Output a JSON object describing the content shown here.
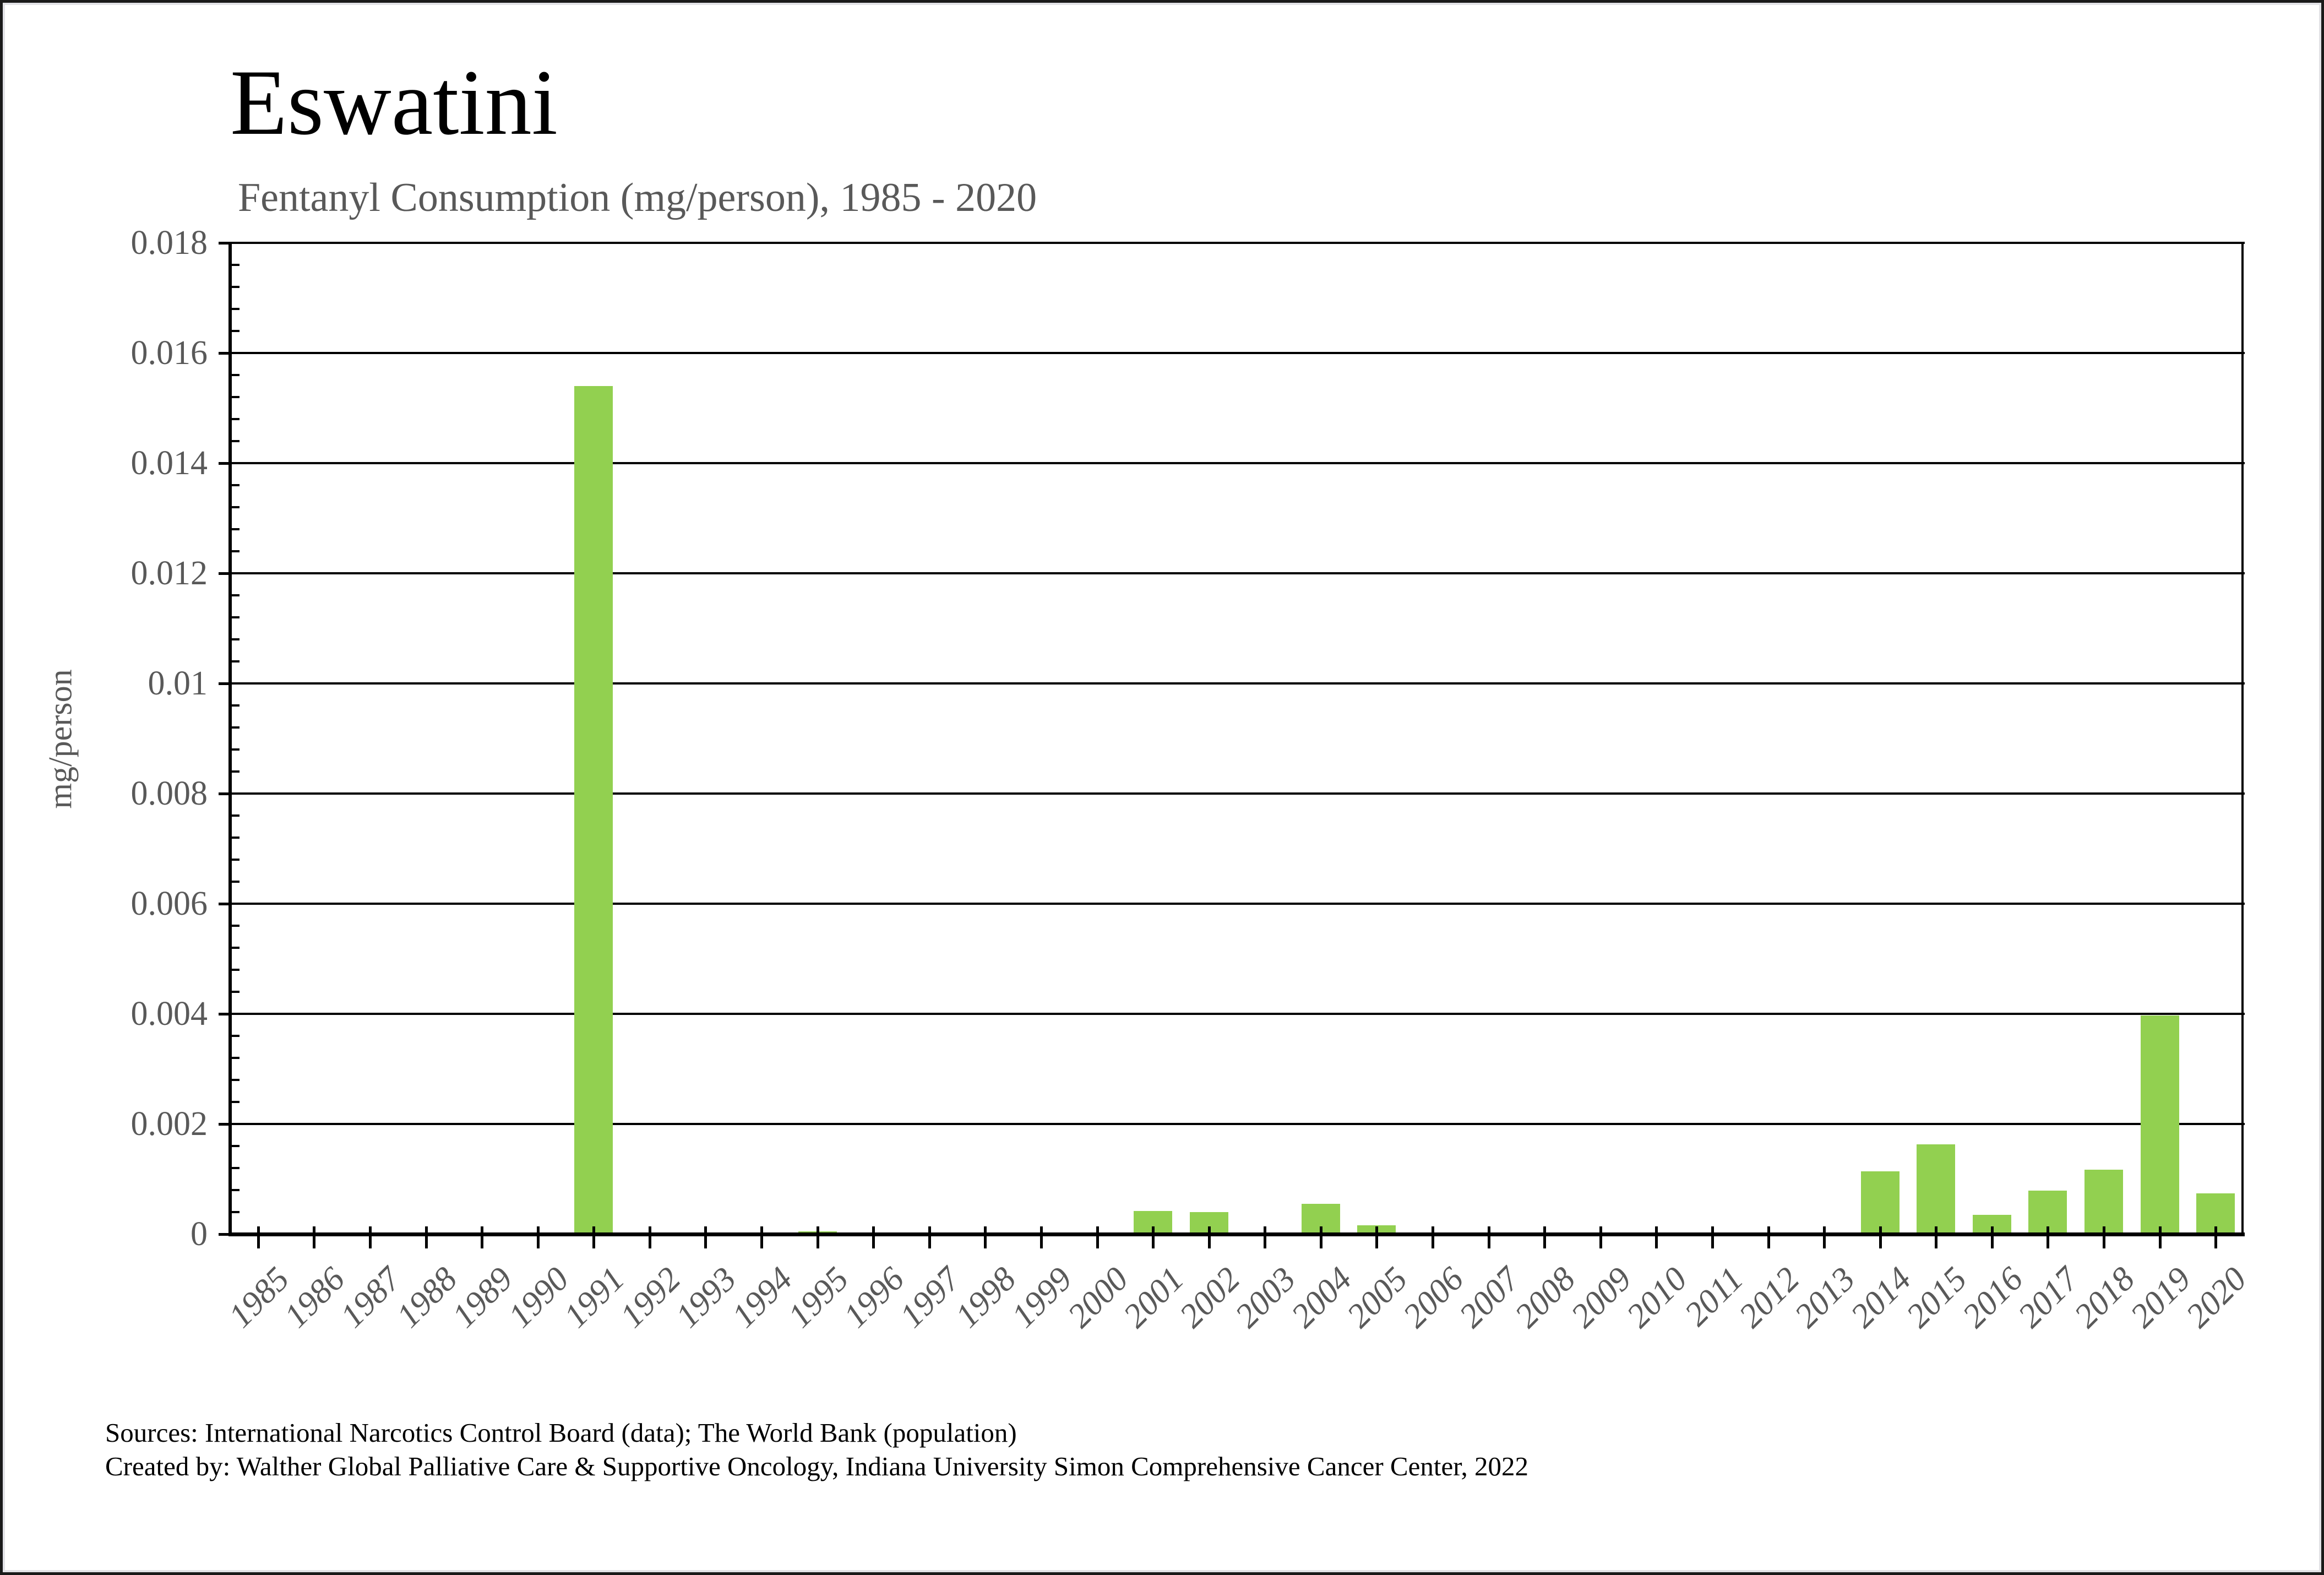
{
  "figure": {
    "title": "Eswatini",
    "subtitle": "Fentanyl Consumption (mg/person), 1985 - 2020",
    "y_axis_title": "mg/person",
    "footer": {
      "sources_line": "Sources: International Narcotics Control Board (data); The World Bank (population)",
      "credit_line": "Created by: Walther Global Palliative Care & Supportive Oncology, Indiana University Simon Comprehensive Cancer Center, 2022"
    }
  },
  "colors": {
    "bar": "#92D050",
    "grid": "#000000",
    "text_gray": "#595959",
    "title_black": "#000000",
    "background": "#ffffff"
  },
  "chart_data": {
    "type": "bar",
    "title": "Eswatini",
    "subtitle": "Fentanyl Consumption (mg/person), 1985 - 2020",
    "xlabel": "",
    "ylabel": "mg/person",
    "ylim": [
      0,
      0.018
    ],
    "ytick_step": 0.002,
    "ytick_labels": [
      "0.018",
      "0.016",
      "0.014",
      "0.012",
      "0.01",
      "0.008",
      "0.006",
      "0.004",
      "0.002",
      "0"
    ],
    "y_minor_ticks_per_major": 5,
    "grid": "horizontal-major-on",
    "legend_position": "none",
    "bar_color": "#92D050",
    "categories": [
      1985,
      1986,
      1987,
      1988,
      1989,
      1990,
      1991,
      1992,
      1993,
      1994,
      1995,
      1996,
      1997,
      1998,
      1999,
      2000,
      2001,
      2002,
      2003,
      2004,
      2005,
      2006,
      2007,
      2008,
      2009,
      2010,
      2011,
      2012,
      2013,
      2014,
      2015,
      2016,
      2017,
      2018,
      2019,
      2020
    ],
    "values": [
      0,
      0,
      0,
      0,
      0,
      0,
      0.0154,
      0,
      0,
      0,
      5e-05,
      0,
      0,
      0,
      0,
      0,
      0.00042,
      0.0004,
      0,
      0.00055,
      0.00016,
      0,
      0,
      0,
      0,
      0,
      0,
      0,
      0,
      0.00114,
      0.00163,
      0.00035,
      0.00079,
      0.00117,
      0.00397,
      0.00074
    ]
  }
}
